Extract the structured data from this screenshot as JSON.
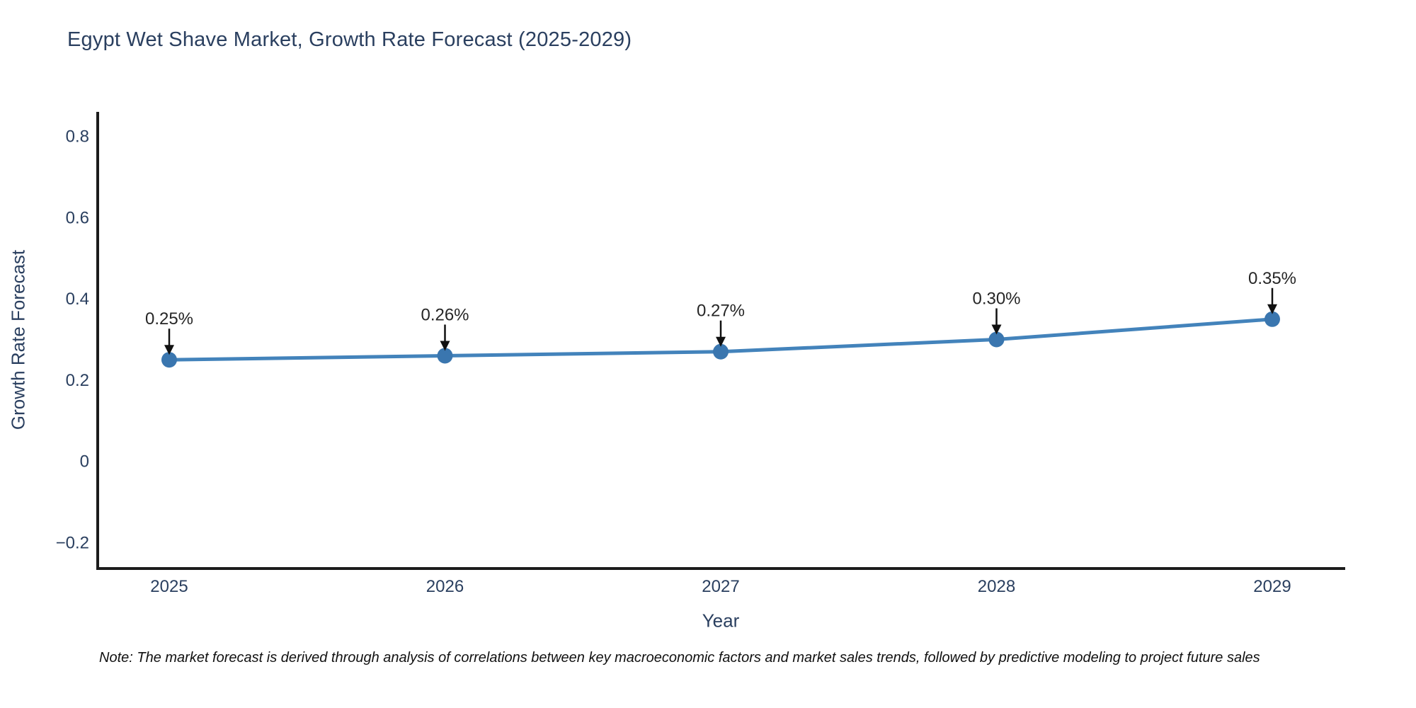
{
  "title": "Egypt Wet Shave Market, Growth Rate Forecast (2025-2029)",
  "note": "Note: The market forecast is derived through analysis of correlations between key macroeconomic factors and market sales trends, followed by predictive modeling to project future sales",
  "chart_data": {
    "type": "line",
    "title": "Egypt Wet Shave Market, Growth Rate Forecast (2025-2029)",
    "xlabel": "Year",
    "ylabel": "Growth Rate Forecast",
    "categories": [
      "2025",
      "2026",
      "2027",
      "2028",
      "2029"
    ],
    "values": [
      0.25,
      0.26,
      0.27,
      0.3,
      0.35
    ],
    "point_labels": [
      "0.25%",
      "0.26%",
      "0.27%",
      "0.30%",
      "0.35%"
    ],
    "yticks": [
      -0.2,
      0,
      0.2,
      0.4,
      0.6,
      0.8
    ],
    "ylim": [
      -0.26,
      0.86
    ],
    "grid": false,
    "legend": "none",
    "colors": {
      "line": "#4383bb",
      "marker": "#3a76af",
      "axis": "#1c1c1c",
      "tick_text": "#2a3f5f",
      "annotation_text": "#262626",
      "arrow": "#111111"
    }
  }
}
